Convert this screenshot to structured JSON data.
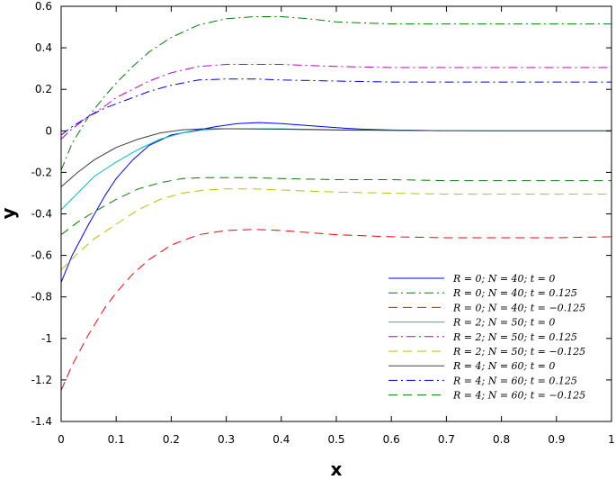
{
  "chart_data": {
    "type": "line",
    "title": "",
    "xlabel": "x",
    "ylabel": "y",
    "xlim": [
      0,
      1
    ],
    "ylim": [
      -1.4,
      0.6
    ],
    "x_ticks": [
      "0",
      "0.1",
      "0.2",
      "0.3",
      "0.4",
      "0.5",
      "0.6",
      "0.7",
      "0.8",
      "0.9",
      "1"
    ],
    "y_ticks": [
      "0.6",
      "0.4",
      "0.2",
      "0",
      "-0.2",
      "-0.4",
      "-0.6",
      "-0.8",
      "-1",
      "-1.2",
      "-1.4"
    ],
    "grid": false,
    "legend_position": "bottom-right",
    "series": [
      {
        "name": "R = 0; N = 40; t = 0",
        "color": "#0000ff",
        "dash": "solid",
        "x": [
          0,
          0.02,
          0.05,
          0.08,
          0.1,
          0.13,
          0.16,
          0.2,
          0.24,
          0.28,
          0.32,
          0.36,
          0.4,
          0.45,
          0.5,
          0.55,
          0.6,
          0.65,
          0.69
        ],
        "y": [
          -0.73,
          -0.6,
          -0.45,
          -0.31,
          -0.23,
          -0.14,
          -0.07,
          -0.02,
          0.0,
          0.02,
          0.035,
          0.04,
          0.035,
          0.025,
          0.015,
          0.008,
          0.004,
          0.002,
          0.001
        ]
      },
      {
        "name": "R = 0; N = 40; t = 0.125",
        "color": "#008000",
        "dash": "dashdot",
        "x": [
          0,
          0.02,
          0.05,
          0.08,
          0.1,
          0.13,
          0.16,
          0.2,
          0.25,
          0.3,
          0.35,
          0.4,
          0.45,
          0.5,
          0.6,
          0.7,
          0.8,
          0.9,
          1
        ],
        "y": [
          -0.19,
          -0.06,
          0.07,
          0.17,
          0.23,
          0.31,
          0.38,
          0.45,
          0.51,
          0.54,
          0.55,
          0.55,
          0.54,
          0.525,
          0.515,
          0.515,
          0.515,
          0.515,
          0.515
        ]
      },
      {
        "name": "R = 0; N = 40; t = −0.125",
        "color": "#ff0000",
        "dash": "dash",
        "x": [
          0,
          0.02,
          0.05,
          0.08,
          0.1,
          0.13,
          0.16,
          0.2,
          0.25,
          0.3,
          0.35,
          0.4,
          0.5,
          0.6,
          0.7,
          0.8,
          0.9,
          1
        ],
        "y": [
          -1.25,
          -1.13,
          -0.98,
          -0.85,
          -0.78,
          -0.69,
          -0.62,
          -0.55,
          -0.5,
          -0.48,
          -0.475,
          -0.48,
          -0.5,
          -0.51,
          -0.515,
          -0.515,
          -0.515,
          -0.51
        ]
      },
      {
        "name": "R = 2; N = 50; t = 0",
        "color": "#00bfbf",
        "dash": "solid",
        "x": [
          0,
          0.03,
          0.06,
          0.1,
          0.14,
          0.18,
          0.22,
          0.26,
          0.3,
          0.4,
          0.5,
          0.6,
          0.7,
          0.8,
          0.9,
          1
        ],
        "y": [
          -0.38,
          -0.3,
          -0.22,
          -0.15,
          -0.09,
          -0.04,
          -0.01,
          0.005,
          0.01,
          0.01,
          0.005,
          0.002,
          0.001,
          0.0,
          0.0,
          0.0
        ]
      },
      {
        "name": "R = 2; N = 50; t = 0.125",
        "color": "#bf00bf",
        "dash": "dashdot",
        "x": [
          0,
          0.02,
          0.05,
          0.08,
          0.1,
          0.13,
          0.16,
          0.2,
          0.25,
          0.3,
          0.35,
          0.4,
          0.5,
          0.6,
          0.7,
          0.8,
          0.9,
          1
        ],
        "y": [
          -0.04,
          0.01,
          0.07,
          0.12,
          0.16,
          0.2,
          0.24,
          0.28,
          0.31,
          0.32,
          0.32,
          0.32,
          0.31,
          0.305,
          0.305,
          0.305,
          0.305,
          0.305
        ]
      },
      {
        "name": "R = 2; N = 50; t = −0.125",
        "color": "#bfbf00",
        "dash": "dash",
        "x": [
          0,
          0.03,
          0.06,
          0.1,
          0.14,
          0.18,
          0.22,
          0.26,
          0.3,
          0.35,
          0.4,
          0.5,
          0.6,
          0.7,
          0.8,
          0.9,
          1
        ],
        "y": [
          -0.67,
          -0.59,
          -0.52,
          -0.45,
          -0.38,
          -0.33,
          -0.3,
          -0.285,
          -0.28,
          -0.28,
          -0.285,
          -0.295,
          -0.3,
          -0.305,
          -0.305,
          -0.305,
          -0.305
        ]
      },
      {
        "name": "R = 4; N = 60; t = 0",
        "color": "#404040",
        "dash": "solid",
        "x": [
          0,
          0.03,
          0.06,
          0.1,
          0.14,
          0.18,
          0.22,
          0.26,
          0.3,
          0.4,
          0.5,
          0.6,
          0.7,
          0.8,
          0.9,
          1
        ],
        "y": [
          -0.27,
          -0.2,
          -0.14,
          -0.08,
          -0.04,
          -0.01,
          0.005,
          0.01,
          0.01,
          0.008,
          0.004,
          0.002,
          0.001,
          0.0,
          0.0,
          0.0
        ]
      },
      {
        "name": "R = 4; N = 60; t = 0.125",
        "color": "#0000ff",
        "dash": "dashdot",
        "x": [
          0,
          0.02,
          0.05,
          0.08,
          0.1,
          0.13,
          0.16,
          0.2,
          0.25,
          0.3,
          0.35,
          0.4,
          0.5,
          0.6,
          0.7,
          0.8,
          0.9,
          1
        ],
        "y": [
          -0.02,
          0.02,
          0.07,
          0.11,
          0.13,
          0.16,
          0.19,
          0.22,
          0.245,
          0.25,
          0.25,
          0.245,
          0.24,
          0.235,
          0.235,
          0.235,
          0.235,
          0.235
        ]
      },
      {
        "name": "R = 4; N = 60; t = −0.125",
        "color": "#008000",
        "dash": "dash",
        "x": [
          0,
          0.03,
          0.06,
          0.1,
          0.14,
          0.18,
          0.22,
          0.26,
          0.3,
          0.35,
          0.4,
          0.5,
          0.6,
          0.7,
          0.8,
          0.9,
          1
        ],
        "y": [
          -0.5,
          -0.44,
          -0.39,
          -0.33,
          -0.28,
          -0.25,
          -0.23,
          -0.225,
          -0.225,
          -0.225,
          -0.23,
          -0.235,
          -0.235,
          -0.24,
          -0.24,
          -0.24,
          -0.24
        ]
      }
    ]
  }
}
